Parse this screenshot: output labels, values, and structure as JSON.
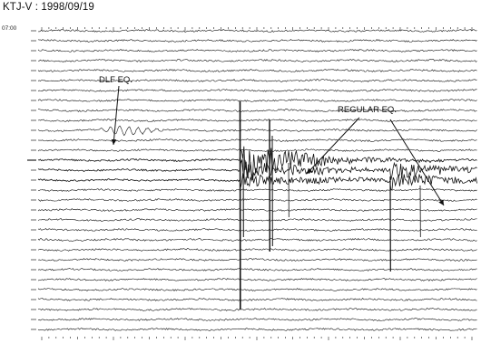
{
  "chart_data": {
    "type": "seismogram",
    "title": "KTJ-V : 1998/09/19",
    "start_time_label": "07:00",
    "trace_count": 31,
    "event_markers": [
      "DLF EQ.",
      "REGULAR EQ."
    ],
    "annotations": [
      {
        "text": "DLF EQ.",
        "points_to": "low-frequency wave packet on trace 10"
      },
      {
        "text": "REGULAR EQ.",
        "points_to": [
          "high-amplitude coda on trace 13",
          "second event coda on trace 15"
        ]
      }
    ],
    "line_color": "#111111",
    "background": "#ffffff"
  }
}
